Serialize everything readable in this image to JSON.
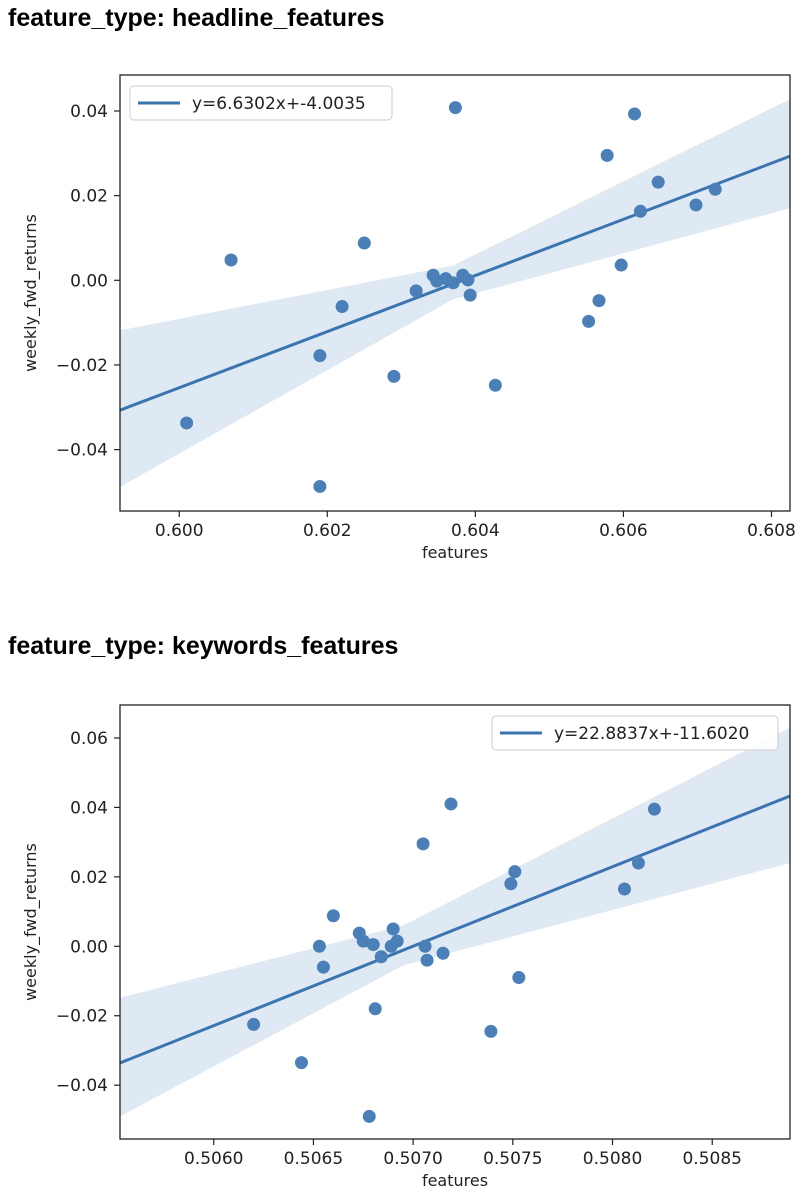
{
  "sections": [
    {
      "title": "feature_type: headline_features"
    },
    {
      "title": "feature_type: keywords_features"
    }
  ],
  "colors": {
    "point": "#4a7fb8",
    "line": "#3a75b0",
    "band": "#c9daec"
  },
  "chart_data": [
    {
      "type": "scatter",
      "title": "",
      "xlabel": "features",
      "ylabel": "weekly_fwd_returns",
      "xlim": [
        0.5992,
        0.60825
      ],
      "ylim": [
        -0.0545,
        0.0485
      ],
      "xticks": [
        0.6,
        0.602,
        0.604,
        0.606,
        0.608
      ],
      "xtick_labels": [
        "0.600",
        "0.602",
        "0.604",
        "0.606",
        "0.608"
      ],
      "yticks": [
        -0.04,
        -0.02,
        0.0,
        0.02,
        0.04
      ],
      "ytick_labels": [
        "−0.04",
        "−0.02",
        "0.00",
        "0.02",
        "0.04"
      ],
      "legend": {
        "label": "y=6.6302x+-4.0035",
        "position": "top-left"
      },
      "fit": {
        "slope": 6.6302,
        "intercept": -4.0035
      },
      "band": {
        "x": [
          0.5992,
          0.6037,
          0.60825
        ],
        "upper": [
          -0.0118,
          0.0035,
          0.0428
        ],
        "lower": [
          -0.0488,
          -0.0045,
          0.017
        ]
      },
      "grid": false,
      "points": [
        {
          "x": 0.6001,
          "y": -0.0337
        },
        {
          "x": 0.6007,
          "y": 0.0048
        },
        {
          "x": 0.6019,
          "y": -0.0487
        },
        {
          "x": 0.6019,
          "y": -0.0178
        },
        {
          "x": 0.6022,
          "y": -0.0062
        },
        {
          "x": 0.6025,
          "y": 0.0088
        },
        {
          "x": 0.6029,
          "y": -0.0227
        },
        {
          "x": 0.6032,
          "y": -0.0025
        },
        {
          "x": 0.60343,
          "y": 0.0012
        },
        {
          "x": 0.60348,
          "y": -0.0002
        },
        {
          "x": 0.6036,
          "y": 0.0004
        },
        {
          "x": 0.6037,
          "y": -0.0006
        },
        {
          "x": 0.60373,
          "y": 0.0408
        },
        {
          "x": 0.60383,
          "y": 0.0012
        },
        {
          "x": 0.6039,
          "y": 0.0001
        },
        {
          "x": 0.60393,
          "y": -0.0035
        },
        {
          "x": 0.60427,
          "y": -0.0248
        },
        {
          "x": 0.60553,
          "y": -0.0097
        },
        {
          "x": 0.60567,
          "y": -0.0048
        },
        {
          "x": 0.60578,
          "y": 0.0295
        },
        {
          "x": 0.60597,
          "y": 0.0036
        },
        {
          "x": 0.60615,
          "y": 0.0393
        },
        {
          "x": 0.60623,
          "y": 0.0163
        },
        {
          "x": 0.60647,
          "y": 0.0232
        },
        {
          "x": 0.60698,
          "y": 0.0178
        },
        {
          "x": 0.60724,
          "y": 0.0215
        }
      ]
    },
    {
      "type": "scatter",
      "title": "",
      "xlabel": "features",
      "ylabel": "weekly_fwd_returns",
      "xlim": [
        0.50553,
        0.50889
      ],
      "ylim": [
        -0.0555,
        0.0695
      ],
      "xticks": [
        0.506,
        0.5065,
        0.507,
        0.5075,
        0.508,
        0.5085
      ],
      "xtick_labels": [
        "0.5060",
        "0.5065",
        "0.5070",
        "0.5075",
        "0.5080",
        "0.5085"
      ],
      "yticks": [
        -0.04,
        -0.02,
        0.0,
        0.02,
        0.04,
        0.06
      ],
      "ytick_labels": [
        "−0.04",
        "−0.02",
        "0.00",
        "0.02",
        "0.04",
        "0.06"
      ],
      "legend": {
        "label": "y=22.8837x+-11.6020",
        "position": "top-right"
      },
      "fit": {
        "slope": 22.8837,
        "intercept": -11.602
      },
      "band": {
        "x": [
          0.50553,
          0.50695,
          0.50889
        ],
        "upper": [
          -0.0148,
          0.006,
          0.063
        ],
        "lower": [
          -0.049,
          -0.0055,
          0.024
        ]
      },
      "grid": false,
      "points": [
        {
          "x": 0.5062,
          "y": -0.0225
        },
        {
          "x": 0.50644,
          "y": -0.0335
        },
        {
          "x": 0.50653,
          "y": 0.0
        },
        {
          "x": 0.50655,
          "y": -0.006
        },
        {
          "x": 0.5066,
          "y": 0.0088
        },
        {
          "x": 0.50673,
          "y": 0.0038
        },
        {
          "x": 0.50675,
          "y": 0.0015
        },
        {
          "x": 0.50678,
          "y": -0.049
        },
        {
          "x": 0.5068,
          "y": 0.0005
        },
        {
          "x": 0.50681,
          "y": -0.018
        },
        {
          "x": 0.50684,
          "y": -0.003
        },
        {
          "x": 0.50689,
          "y": 0.0
        },
        {
          "x": 0.5069,
          "y": 0.005
        },
        {
          "x": 0.50692,
          "y": 0.0015
        },
        {
          "x": 0.50705,
          "y": 0.0295
        },
        {
          "x": 0.50706,
          "y": 0.0
        },
        {
          "x": 0.50707,
          "y": -0.004
        },
        {
          "x": 0.50715,
          "y": -0.002
        },
        {
          "x": 0.50719,
          "y": 0.041
        },
        {
          "x": 0.50739,
          "y": -0.0245
        },
        {
          "x": 0.50749,
          "y": 0.018
        },
        {
          "x": 0.50751,
          "y": 0.0215
        },
        {
          "x": 0.50753,
          "y": -0.009
        },
        {
          "x": 0.50806,
          "y": 0.0165
        },
        {
          "x": 0.50813,
          "y": 0.024
        },
        {
          "x": 0.50821,
          "y": 0.0395
        }
      ]
    }
  ]
}
